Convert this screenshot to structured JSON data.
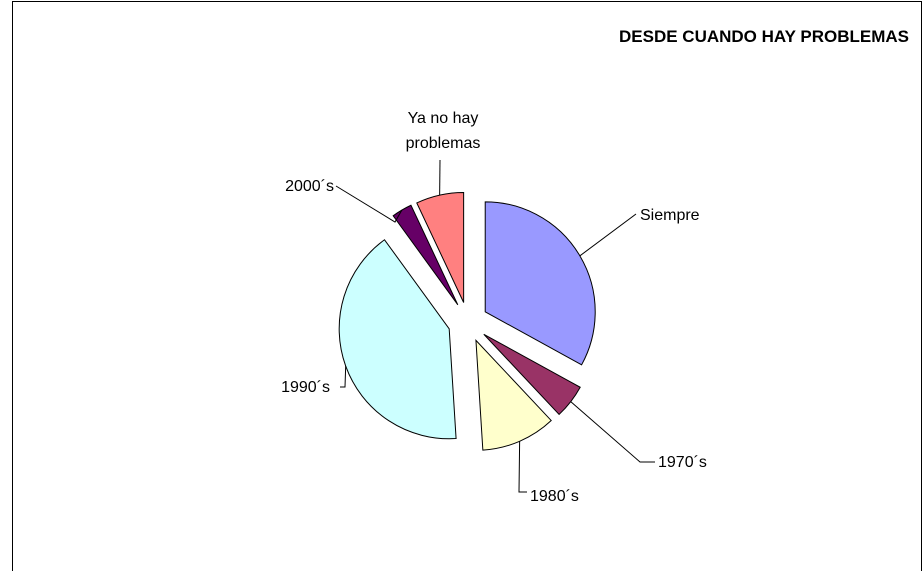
{
  "chart_data": {
    "type": "pie",
    "title": "DESDE CUANDO HAY PROBLEMAS",
    "categories": [
      "Siempre",
      "1970´s",
      "1980´s",
      "1990´s",
      "2000´s",
      "Ya no hay problemas"
    ],
    "values": [
      33,
      5,
      11,
      41,
      3,
      7
    ],
    "colors": [
      "#9999ff",
      "#993366",
      "#ffffcc",
      "#ccffff",
      "#660066",
      "#ff8080"
    ],
    "exploded": true
  }
}
